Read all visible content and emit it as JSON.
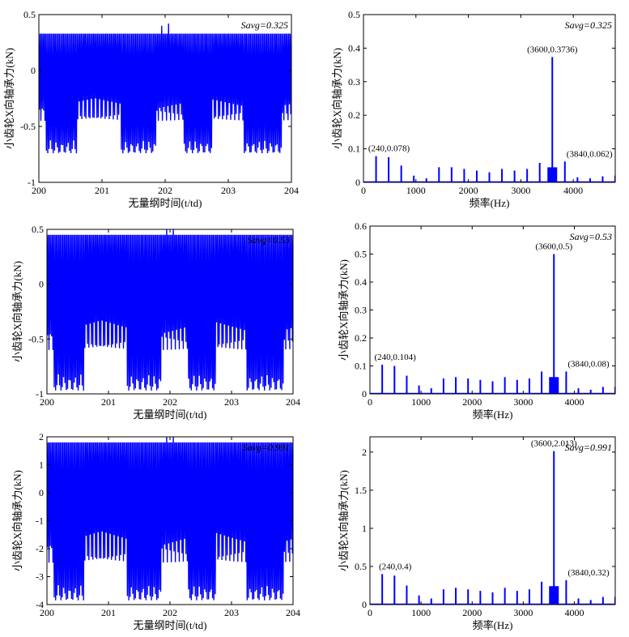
{
  "chart_data": [
    {
      "type": "line",
      "ylabel": "小齿轮X向轴承力(kN)",
      "xlabel": "无量纲时间(t/td)",
      "xlim": [
        200,
        204
      ],
      "ylim": [
        -1,
        0.5
      ],
      "xticks": [
        "200",
        "201",
        "202",
        "203",
        "204"
      ],
      "yticks": [
        "-1",
        "-0.5",
        "0",
        "0.5"
      ],
      "annotation": "Savg=0.325",
      "color": "#0000ff",
      "series": [
        {
          "baseline_top": 0.33,
          "trough_min": -0.74,
          "trough_shallow": -0.45,
          "deep_trough_windows": [
            [
              200.1,
              200.6
            ],
            [
              201.3,
              201.85
            ],
            [
              202.3,
              202.75
            ],
            [
              203.25,
              203.85
            ]
          ],
          "peak_spikes": [
            [
              201.95,
              0.4
            ],
            [
              202.05,
              0.42
            ]
          ]
        }
      ]
    },
    {
      "type": "bar",
      "ylabel": "小齿轮X向轴承力(kN)",
      "xlabel": "频率(Hz)",
      "xlim": [
        0,
        4800
      ],
      "ylim": [
        0,
        0.5
      ],
      "xticks": [
        "0",
        "1000",
        "2000",
        "3000",
        "4000"
      ],
      "yticks": [
        "0",
        "0.1",
        "0.2",
        "0.3",
        "0.4",
        "0.5"
      ],
      "annotation": "Savg=0.325",
      "labels": [
        {
          "x": 3600,
          "y": 0.3736,
          "text": "(3600,0.3736)"
        },
        {
          "x": 240,
          "y": 0.078,
          "text": "(240,0.078)"
        },
        {
          "x": 3840,
          "y": 0.062,
          "text": "(3840,0.062)"
        }
      ],
      "color": "#0000ff",
      "x": [
        240,
        480,
        720,
        960,
        1200,
        1440,
        1680,
        1920,
        2160,
        2400,
        2640,
        2880,
        3120,
        3360,
        3600,
        3840,
        4080,
        4320,
        4560,
        4800
      ],
      "values": [
        0.078,
        0.075,
        0.05,
        0.02,
        0.012,
        0.045,
        0.045,
        0.04,
        0.035,
        0.03,
        0.04,
        0.035,
        0.04,
        0.058,
        0.3736,
        0.062,
        0.015,
        0.012,
        0.018,
        0.02
      ]
    },
    {
      "type": "line",
      "ylabel": "小齿轮X向轴承力(kN)",
      "xlabel": "无量纲时间(t/td)",
      "xlim": [
        200,
        204
      ],
      "ylim": [
        -1,
        0.5
      ],
      "xticks": [
        "200",
        "201",
        "202",
        "203",
        "204"
      ],
      "yticks": [
        "-1",
        "-0.5",
        "0",
        "0.5"
      ],
      "annotation": "Savg=0.53",
      "color": "#0000ff",
      "series": [
        {
          "baseline_top": 0.45,
          "trough_min": -0.97,
          "trough_shallow": -0.6,
          "deep_trough_windows": [
            [
              200.1,
              200.6
            ],
            [
              201.3,
              201.85
            ],
            [
              202.3,
              202.75
            ],
            [
              203.25,
              203.85
            ]
          ],
          "peak_spikes": [
            [
              201.95,
              0.5
            ],
            [
              202.05,
              0.5
            ]
          ]
        }
      ]
    },
    {
      "type": "bar",
      "ylabel": "小齿轮X向轴承力(kN)",
      "xlabel": "频率(Hz)",
      "xlim": [
        0,
        4800
      ],
      "ylim": [
        0,
        0.6
      ],
      "xticks": [
        "0",
        "1000",
        "2000",
        "3000",
        "4000"
      ],
      "yticks": [
        "0",
        "0.1",
        "0.2",
        "0.3",
        "0.4",
        "0.5",
        "0.6"
      ],
      "annotation": "Savg=0.53",
      "labels": [
        {
          "x": 3600,
          "y": 0.5,
          "text": "(3600,0.5)"
        },
        {
          "x": 240,
          "y": 0.104,
          "text": "(240,0.104)"
        },
        {
          "x": 3840,
          "y": 0.08,
          "text": "(3840,0.08)"
        }
      ],
      "color": "#0000ff",
      "x": [
        240,
        480,
        720,
        960,
        1200,
        1440,
        1680,
        1920,
        2160,
        2400,
        2640,
        2880,
        3120,
        3360,
        3600,
        3840,
        4080,
        4320,
        4560,
        4800
      ],
      "values": [
        0.104,
        0.1,
        0.065,
        0.03,
        0.02,
        0.055,
        0.06,
        0.055,
        0.05,
        0.045,
        0.06,
        0.05,
        0.055,
        0.08,
        0.5,
        0.08,
        0.02,
        0.015,
        0.025,
        0.025
      ]
    },
    {
      "type": "line",
      "ylabel": "小齿轮X向轴承力(kN)",
      "xlabel": "无量纲时间(t/td)",
      "xlim": [
        200,
        204
      ],
      "ylim": [
        -4,
        2
      ],
      "xticks": [
        "200",
        "201",
        "202",
        "203",
        "204"
      ],
      "yticks": [
        "-4",
        "-3",
        "-2",
        "-1",
        "0",
        "1",
        "2"
      ],
      "annotation": "Savg=0.991",
      "color": "#0000ff",
      "series": [
        {
          "baseline_top": 1.8,
          "trough_min": -3.85,
          "trough_shallow": -2.5,
          "deep_trough_windows": [
            [
              200.1,
              200.6
            ],
            [
              201.3,
              201.85
            ],
            [
              202.3,
              202.75
            ],
            [
              203.25,
              203.85
            ]
          ],
          "peak_spikes": [
            [
              201.95,
              2.0
            ],
            [
              202.05,
              2.0
            ]
          ]
        }
      ]
    },
    {
      "type": "bar",
      "ylabel": "小齿轮X向轴承力(kN)",
      "xlabel": "频率(Hz)",
      "xlim": [
        0,
        4800
      ],
      "ylim": [
        0,
        2.2
      ],
      "xticks": [
        "0",
        "1000",
        "2000",
        "3000",
        "4000"
      ],
      "yticks": [
        "0",
        "0.5",
        "1",
        "1.5",
        "2"
      ],
      "annotation": "Savg=0.991",
      "labels": [
        {
          "x": 3600,
          "y": 2.013,
          "text": "(3600,2.013)"
        },
        {
          "x": 240,
          "y": 0.4,
          "text": "(240,0.4)"
        },
        {
          "x": 3840,
          "y": 0.32,
          "text": "(3840,0.32)"
        }
      ],
      "color": "#0000ff",
      "x": [
        240,
        480,
        720,
        960,
        1200,
        1440,
        1680,
        1920,
        2160,
        2400,
        2640,
        2880,
        3120,
        3360,
        3600,
        3840,
        4080,
        4320,
        4560,
        4800
      ],
      "values": [
        0.4,
        0.38,
        0.25,
        0.12,
        0.08,
        0.2,
        0.22,
        0.2,
        0.18,
        0.16,
        0.22,
        0.18,
        0.2,
        0.3,
        2.013,
        0.32,
        0.08,
        0.06,
        0.1,
        0.1
      ]
    }
  ]
}
